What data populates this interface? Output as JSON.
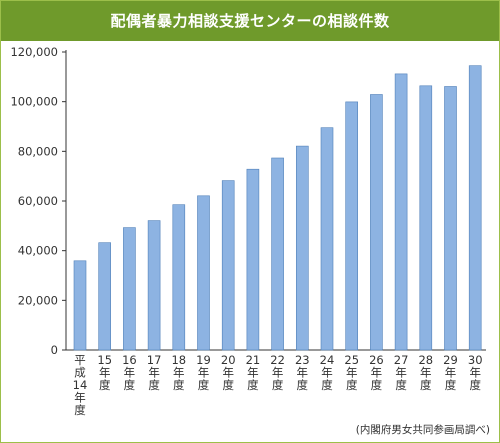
{
  "title": "配偶者暴力相談支援センターの相談件数",
  "source": "(内閣府男女共同参画局調べ)",
  "colors": {
    "title_band": "#6f9a2b",
    "frame": "#9cbf4a",
    "bar_fill": "#8db3e2",
    "bar_stroke": "#4f7fb8"
  },
  "chart_data": {
    "type": "bar",
    "title": "配偶者暴力相談支援センターの相談件数",
    "xlabel": "",
    "ylabel": "",
    "ylim": [
      0,
      120000
    ],
    "y_ticks": [
      "0",
      "20,000",
      "40,000",
      "60,000",
      "80,000",
      "100,000",
      "120,000"
    ],
    "grid": false,
    "categories": [
      "平成14年度",
      "15年度",
      "16年度",
      "17年度",
      "18年度",
      "19年度",
      "20年度",
      "21年度",
      "22年度",
      "23年度",
      "24年度",
      "25年度",
      "26年度",
      "27年度",
      "28年度",
      "29年度",
      "30年度"
    ],
    "values": [
      35900,
      43200,
      49300,
      52100,
      58500,
      62100,
      68200,
      72800,
      77300,
      82100,
      89500,
      99900,
      102900,
      111200,
      106400,
      106100,
      114500
    ]
  }
}
